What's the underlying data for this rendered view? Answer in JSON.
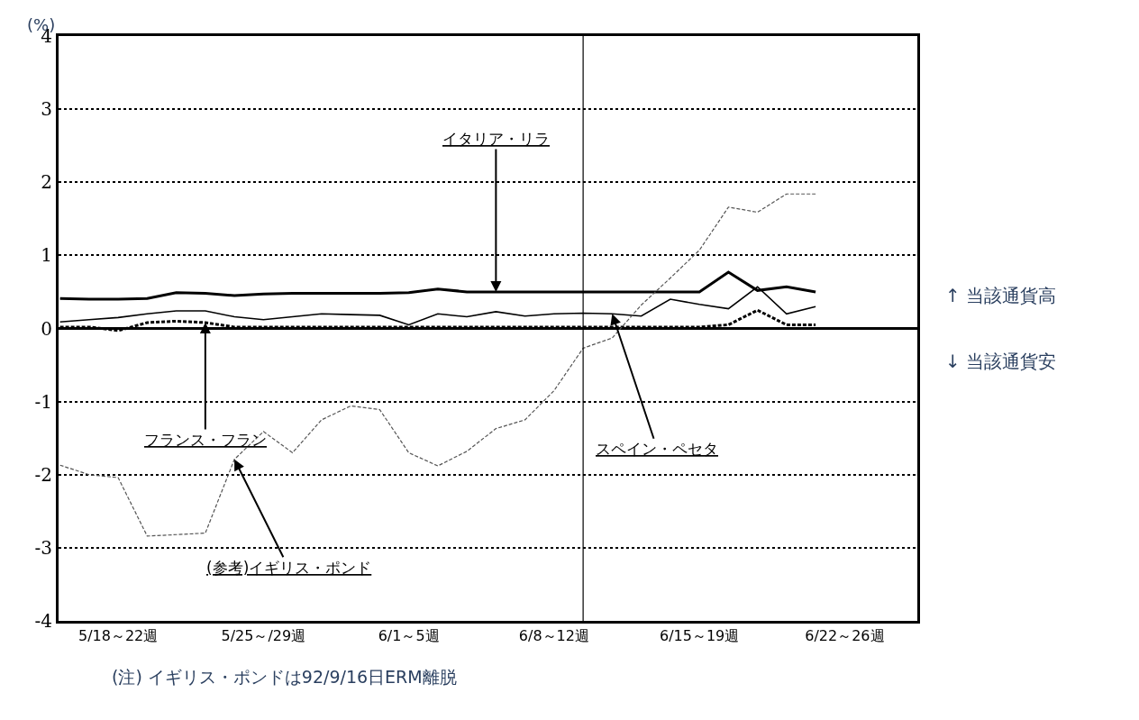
{
  "chart_data": {
    "type": "line",
    "ylabel": "(%)",
    "categories": [
      null,
      null,
      "5/18～22週",
      null,
      null,
      null,
      null,
      "5/25～/29週",
      null,
      null,
      null,
      null,
      "6/1～5週",
      null,
      null,
      null,
      null,
      "6/8～12週",
      null,
      null,
      null,
      null,
      "6/15～19週",
      null,
      null,
      null,
      null,
      "6/22～26週",
      null,
      null
    ],
    "ylim": [
      -4,
      4
    ],
    "yticks": [
      -4,
      -3,
      -2,
      -1,
      0,
      1,
      2,
      3,
      4
    ],
    "grid": "y",
    "legend": false,
    "series": [
      {
        "name": "イタリア・リラ",
        "color": "#000000",
        "line_style": "solid",
        "values": [
          0.41,
          0.4,
          0.4,
          0.41,
          0.49,
          0.48,
          0.45,
          0.47,
          0.48,
          0.48,
          0.48,
          0.48,
          0.49,
          0.54,
          0.5,
          0.5,
          0.5,
          0.5,
          0.5,
          0.5,
          0.5,
          0.5,
          0.5,
          0.77,
          0.52,
          0.57,
          0.5,
          null,
          null,
          null
        ]
      },
      {
        "name": "スペイン・ペセタ",
        "color": "#000000",
        "line_style": "solid",
        "values": [
          0.09,
          0.12,
          0.15,
          0.2,
          0.24,
          0.24,
          0.16,
          0.12,
          0.16,
          0.2,
          0.19,
          0.18,
          0.05,
          0.2,
          0.16,
          0.23,
          0.17,
          0.2,
          0.21,
          0.2,
          0.17,
          0.4,
          0.33,
          0.27,
          0.57,
          0.2,
          0.3,
          null,
          null,
          null
        ]
      },
      {
        "name": "フランス・フラン",
        "color": "#000000",
        "line_style": "dashed",
        "values": [
          0.02,
          0.02,
          -0.03,
          0.08,
          0.1,
          0.08,
          0.02,
          0.02,
          0.02,
          0.02,
          0.02,
          0.02,
          0.02,
          0.02,
          0.02,
          0.02,
          0.02,
          0.02,
          0.02,
          0.02,
          0.02,
          0.02,
          0.02,
          0.05,
          0.25,
          0.05,
          0.05,
          null,
          null,
          null
        ]
      },
      {
        "name": "(参考)イギリス・ポンド",
        "color": "#555555",
        "line_style": "dashed",
        "values": [
          -1.87,
          -2.0,
          -2.04,
          -2.84,
          -2.82,
          -2.8,
          -1.79,
          -1.41,
          -1.7,
          -1.25,
          -1.06,
          -1.11,
          -1.7,
          -1.88,
          -1.68,
          -1.37,
          -1.25,
          -0.85,
          -0.27,
          -0.13,
          0.32,
          0.69,
          1.07,
          1.66,
          1.59,
          1.84,
          1.84,
          null,
          null,
          null
        ]
      }
    ],
    "annotations": [
      "↑ 当該通貨高",
      "↓ 当該通貨安",
      "(注) イギリス・ポンドは92/9/16日ERM離脱"
    ]
  }
}
